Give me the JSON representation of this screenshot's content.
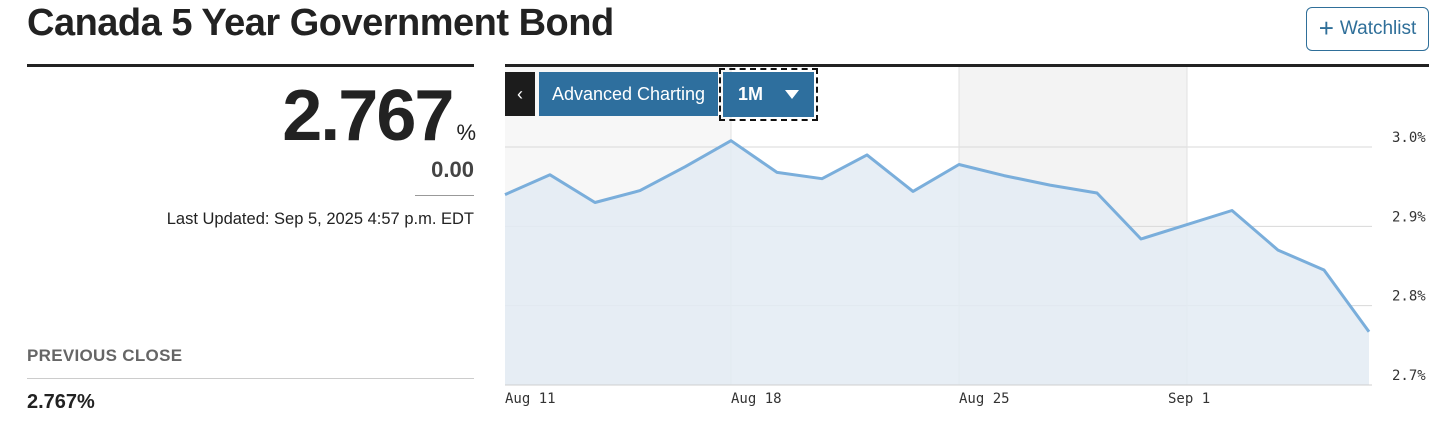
{
  "header": {
    "title": "Canada 5 Year Government Bond",
    "watchlist_label": "Watchlist"
  },
  "quote": {
    "price": "2.767",
    "unit": "%",
    "change": "0.00",
    "last_updated": "Last Updated: Sep 5, 2025 4:57 p.m. EDT",
    "previous_close_label": "PREVIOUS CLOSE",
    "previous_close_value": "2.767%"
  },
  "chart_toolbar": {
    "back_label": "‹",
    "advanced_label": "Advanced Charting",
    "range_label": "1M"
  },
  "colors": {
    "line": "#7aaedb",
    "area": "#e3ebf3",
    "button": "#2e6f9e",
    "gridline": "#d8d8d8"
  },
  "chart_data": {
    "type": "area",
    "x": [
      "2025-08-07",
      "2025-08-11",
      "2025-08-12",
      "2025-08-13",
      "2025-08-14",
      "2025-08-18",
      "2025-08-19",
      "2025-08-20",
      "2025-08-21",
      "2025-08-22",
      "2025-08-25",
      "2025-08-26",
      "2025-08-27",
      "2025-08-28",
      "2025-08-29",
      "2025-09-02",
      "2025-09-03",
      "2025-09-04",
      "2025-09-05"
    ],
    "series": [
      {
        "values": [
          2.94,
          2.965,
          2.93,
          2.945,
          2.975,
          3.008,
          2.968,
          2.96,
          2.99,
          2.944,
          2.978,
          2.964,
          2.952,
          2.942,
          2.884,
          2.92,
          2.87,
          2.845,
          2.767
        ]
      }
    ],
    "x_ticks": [
      "Aug 11",
      "Aug 18",
      "Aug 25",
      "Sep 1"
    ],
    "y_ticks": [
      "3.0%",
      "2.9%",
      "2.8%",
      "2.7%"
    ],
    "ylim": [
      2.7,
      3.0
    ],
    "grid": true,
    "shaded_bands": true
  }
}
